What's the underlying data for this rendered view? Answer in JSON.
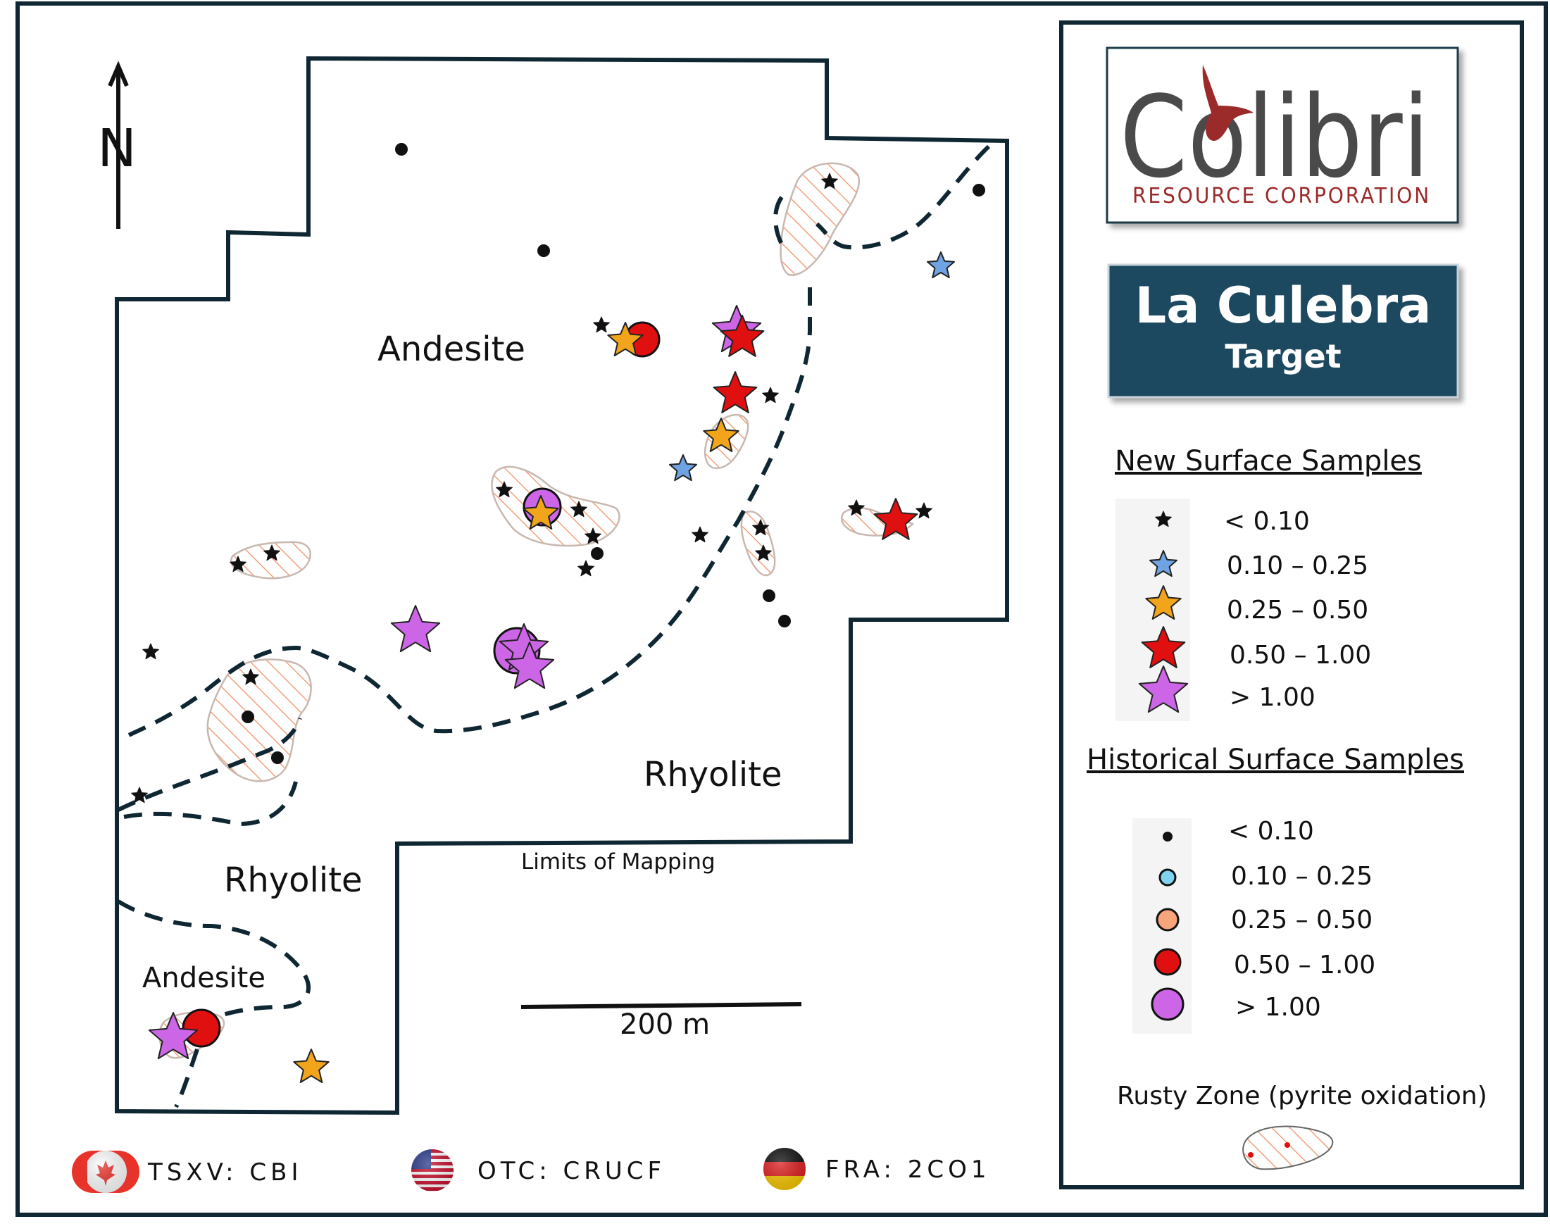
{
  "map": {
    "north_label": "N",
    "geology_labels": {
      "andesite_north": "Andesite",
      "rhyolite_east": "Rhyolite",
      "rhyolite_south": "Rhyolite",
      "andesite_south": "Andesite"
    },
    "limits_label": "Limits of Mapping",
    "scale_label": "200 m"
  },
  "logo": {
    "brand_text": "Colibri",
    "subtitle": "RESOURCE CORPORATION",
    "brand_color": "#4a4a4a",
    "accent_color": "#9b2a2a"
  },
  "title_box": {
    "line1": "La Culebra",
    "line2": "Target",
    "background": "#1d4a5e"
  },
  "legend": {
    "new_samples": {
      "heading": "New Surface Samples",
      "items": [
        {
          "label": "< 0.10",
          "color": "#111111"
        },
        {
          "label": "0.10 – 0.25",
          "color": "#6fa3e3"
        },
        {
          "label": "0.25 – 0.50",
          "color": "#f2a51a"
        },
        {
          "label": "0.50 – 1.00",
          "color": "#e01010"
        },
        {
          "label": "> 1.00",
          "color": "#cc66e6"
        }
      ]
    },
    "historical_samples": {
      "heading": "Historical Surface Samples",
      "items": [
        {
          "label": "< 0.10",
          "color": "#111111"
        },
        {
          "label": "0.10 – 0.25",
          "color": "#7fd3ee"
        },
        {
          "label": "0.25 – 0.50",
          "color": "#f7a57a"
        },
        {
          "label": "0.50 – 1.00",
          "color": "#e01010"
        },
        {
          "label": "> 1.00",
          "color": "#cc66e6"
        }
      ]
    },
    "rusty_zone": {
      "label": "Rusty Zone (pyrite oxidation)",
      "hatch_color": "#f2a07a"
    }
  },
  "tickers": [
    {
      "text": "TSXV: CBI",
      "flag": "canada-flag-icon"
    },
    {
      "text": "OTC: CRUCF",
      "flag": "usa-flag-icon"
    },
    {
      "text": "FRA: 2CO1",
      "flag": "germany-flag-icon"
    }
  ],
  "colors": {
    "frame": "#0f2633",
    "property_outline": "#0f2633",
    "contact_line": "#0f2633"
  }
}
